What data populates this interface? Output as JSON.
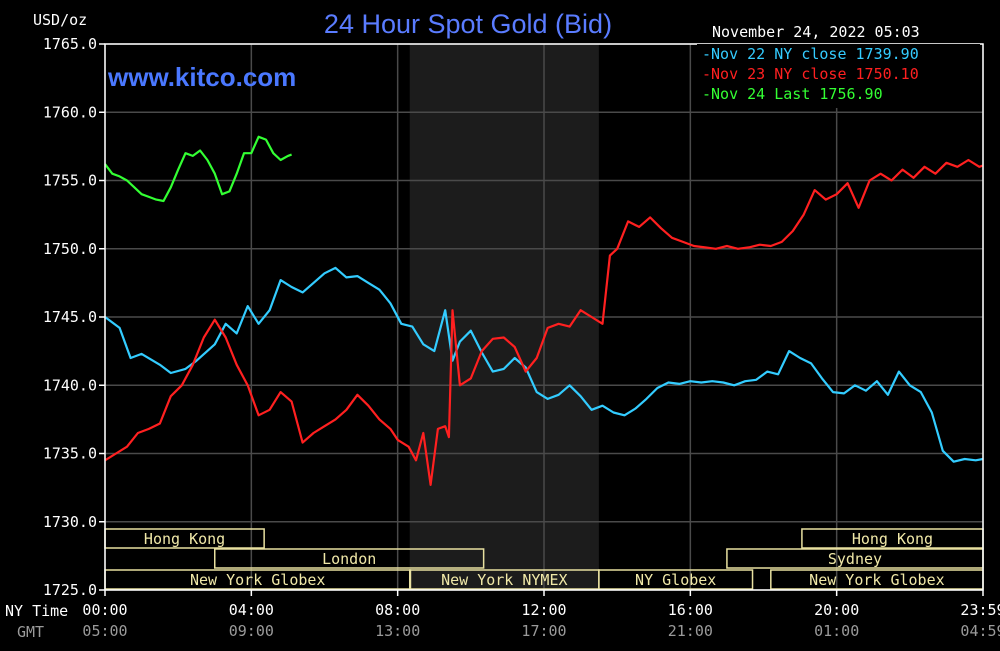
{
  "chart_data": {
    "type": "line",
    "title": "24 Hour Spot Gold (Bid)",
    "watermark": "www.kitco.com",
    "ylabel": "USD/oz",
    "timestamp": "November 24, 2022 05:03",
    "ylim": [
      1725,
      1765
    ],
    "y_ticks": [
      "1765.0",
      "1760.0",
      "1755.0",
      "1750.0",
      "1745.0",
      "1740.0",
      "1735.0",
      "1730.0",
      "1725.0"
    ],
    "x_row_labels": [
      "NY Time",
      "GMT"
    ],
    "x_ticks_ny": [
      "00:00",
      "04:00",
      "08:00",
      "12:00",
      "16:00",
      "20:00",
      "23:59"
    ],
    "x_ticks_gmt": [
      "05:00",
      "09:00",
      "13:00",
      "17:00",
      "21:00",
      "01:00",
      "04:59"
    ],
    "x_tick_hours": [
      0,
      4,
      8,
      12,
      16,
      20,
      24
    ],
    "xlim_hours": [
      0,
      24
    ],
    "shaded_region_hours": [
      8.33,
      13.5
    ],
    "legend": [
      {
        "text": "-Nov 22 NY close 1739.90",
        "color": "#33ccff"
      },
      {
        "text": "-Nov 23 NY close 1750.10",
        "color": "#ff2020"
      },
      {
        "text": "-Nov 24 Last 1756.90",
        "color": "#33ff33"
      }
    ],
    "series": [
      {
        "name": "Nov 22",
        "color": "#33ccff",
        "x": [
          0,
          0.4,
          0.7,
          1.0,
          1.5,
          1.8,
          2.2,
          2.5,
          3.0,
          3.3,
          3.6,
          3.9,
          4.2,
          4.5,
          4.8,
          5.1,
          5.4,
          5.7,
          6.0,
          6.3,
          6.6,
          6.9,
          7.2,
          7.5,
          7.8,
          8.1,
          8.4,
          8.7,
          9.0,
          9.3,
          9.5,
          9.7,
          10.0,
          10.3,
          10.6,
          10.9,
          11.2,
          11.5,
          11.8,
          12.1,
          12.4,
          12.7,
          13.0,
          13.3,
          13.6,
          13.9,
          14.2,
          14.5,
          14.8,
          15.1,
          15.4,
          15.7,
          16.0,
          16.3,
          16.6,
          16.9,
          17.2,
          17.5,
          17.8,
          18.1,
          18.4,
          18.7,
          19.0,
          19.3,
          19.6,
          19.9,
          20.2,
          20.5,
          20.8,
          21.1,
          21.4,
          21.7,
          22.0,
          22.3,
          22.6,
          22.9,
          23.2,
          23.5,
          23.8,
          24.0
        ],
        "y": [
          1745.0,
          1744.2,
          1742.0,
          1742.3,
          1741.5,
          1740.9,
          1741.2,
          1741.8,
          1743.0,
          1744.5,
          1743.8,
          1745.8,
          1744.5,
          1745.5,
          1747.7,
          1747.2,
          1746.8,
          1747.5,
          1748.2,
          1748.6,
          1747.9,
          1748.0,
          1747.5,
          1747.0,
          1746.0,
          1744.5,
          1744.3,
          1743.0,
          1742.5,
          1745.5,
          1741.8,
          1743.2,
          1744.0,
          1742.4,
          1741.0,
          1741.2,
          1742.0,
          1741.3,
          1739.5,
          1739.0,
          1739.3,
          1740.0,
          1739.2,
          1738.2,
          1738.5,
          1738.0,
          1737.8,
          1738.3,
          1739.0,
          1739.8,
          1740.2,
          1740.1,
          1740.3,
          1740.2,
          1740.3,
          1740.2,
          1740.0,
          1740.3,
          1740.4,
          1741.0,
          1740.8,
          1742.5,
          1742.0,
          1741.6,
          1740.5,
          1739.5,
          1739.4,
          1740.0,
          1739.6,
          1740.3,
          1739.3,
          1741.0,
          1740.0,
          1739.5,
          1738.0,
          1735.2,
          1734.4,
          1734.6,
          1734.5,
          1734.6
        ]
      },
      {
        "name": "Nov 23",
        "color": "#ff2020",
        "x": [
          0,
          0.3,
          0.6,
          0.9,
          1.2,
          1.5,
          1.8,
          2.1,
          2.4,
          2.7,
          3.0,
          3.3,
          3.6,
          3.9,
          4.2,
          4.5,
          4.8,
          5.1,
          5.4,
          5.7,
          6.0,
          6.3,
          6.6,
          6.9,
          7.2,
          7.5,
          7.8,
          8.0,
          8.3,
          8.5,
          8.7,
          8.9,
          9.1,
          9.3,
          9.4,
          9.5,
          9.7,
          10.0,
          10.3,
          10.6,
          10.9,
          11.2,
          11.5,
          11.8,
          12.1,
          12.4,
          12.7,
          13.0,
          13.3,
          13.6,
          13.8,
          14.0,
          14.3,
          14.6,
          14.9,
          15.2,
          15.5,
          15.8,
          16.1,
          16.4,
          16.7,
          17.0,
          17.3,
          17.6,
          17.9,
          18.2,
          18.5,
          18.8,
          19.1,
          19.4,
          19.7,
          20.0,
          20.3,
          20.6,
          20.9,
          21.2,
          21.5,
          21.8,
          22.1,
          22.4,
          22.7,
          23.0,
          23.3,
          23.6,
          23.9,
          24.0
        ],
        "y": [
          1734.5,
          1735.0,
          1735.5,
          1736.5,
          1736.8,
          1737.2,
          1739.2,
          1740.0,
          1741.5,
          1743.5,
          1744.8,
          1743.5,
          1741.5,
          1740.0,
          1737.8,
          1738.2,
          1739.5,
          1738.8,
          1735.8,
          1736.5,
          1737.0,
          1737.5,
          1738.2,
          1739.3,
          1738.5,
          1737.5,
          1736.8,
          1736.0,
          1735.5,
          1734.5,
          1736.5,
          1732.7,
          1736.8,
          1737.0,
          1736.2,
          1745.5,
          1740.0,
          1740.5,
          1742.5,
          1743.4,
          1743.5,
          1742.8,
          1741.0,
          1742.0,
          1744.2,
          1744.5,
          1744.3,
          1745.5,
          1745.0,
          1744.5,
          1749.5,
          1750.0,
          1752.0,
          1751.6,
          1752.3,
          1751.5,
          1750.8,
          1750.5,
          1750.2,
          1750.1,
          1750.0,
          1750.2,
          1750.0,
          1750.1,
          1750.3,
          1750.2,
          1750.5,
          1751.3,
          1752.5,
          1754.3,
          1753.6,
          1754.0,
          1754.8,
          1753.0,
          1755.0,
          1755.5,
          1755.0,
          1755.8,
          1755.2,
          1756.0,
          1755.5,
          1756.3,
          1756.0,
          1756.5,
          1756.0,
          1756.1
        ]
      },
      {
        "name": "Nov 24",
        "color": "#33ff33",
        "x": [
          0,
          0.2,
          0.4,
          0.6,
          0.8,
          1.0,
          1.2,
          1.4,
          1.6,
          1.8,
          2.0,
          2.2,
          2.4,
          2.6,
          2.8,
          3.0,
          3.2,
          3.4,
          3.6,
          3.8,
          4.0,
          4.2,
          4.4,
          4.6,
          4.8,
          5.0,
          5.1
        ],
        "y": [
          1756.2,
          1755.5,
          1755.3,
          1755.0,
          1754.5,
          1754.0,
          1753.8,
          1753.6,
          1753.5,
          1754.5,
          1755.8,
          1757.0,
          1756.8,
          1757.2,
          1756.5,
          1755.5,
          1754.0,
          1754.2,
          1755.5,
          1757.0,
          1757.0,
          1758.2,
          1758.0,
          1757.0,
          1756.5,
          1756.8,
          1756.9
        ]
      }
    ]
  },
  "sessions": [
    {
      "label": "Hong Kong",
      "row": 0,
      "start": 0,
      "end": 4.35
    },
    {
      "label": "London",
      "row": 1,
      "start": 3.0,
      "end": 10.35
    },
    {
      "label": "New York Globex",
      "row": 2,
      "start": 0,
      "end": 8.35
    },
    {
      "label": "New York NYMEX",
      "row": 2,
      "start": 8.33,
      "end": 13.5
    },
    {
      "label": "NY Globex",
      "row": 2,
      "start": 13.5,
      "end": 17.7
    },
    {
      "label": "Hong Kong",
      "row": 0,
      "start": 19.05,
      "end": 24
    },
    {
      "label": "Sydney",
      "row": 1,
      "start": 17.0,
      "end": 24
    },
    {
      "label": "New York Globex",
      "row": 2,
      "start": 18.2,
      "end": 24
    }
  ]
}
